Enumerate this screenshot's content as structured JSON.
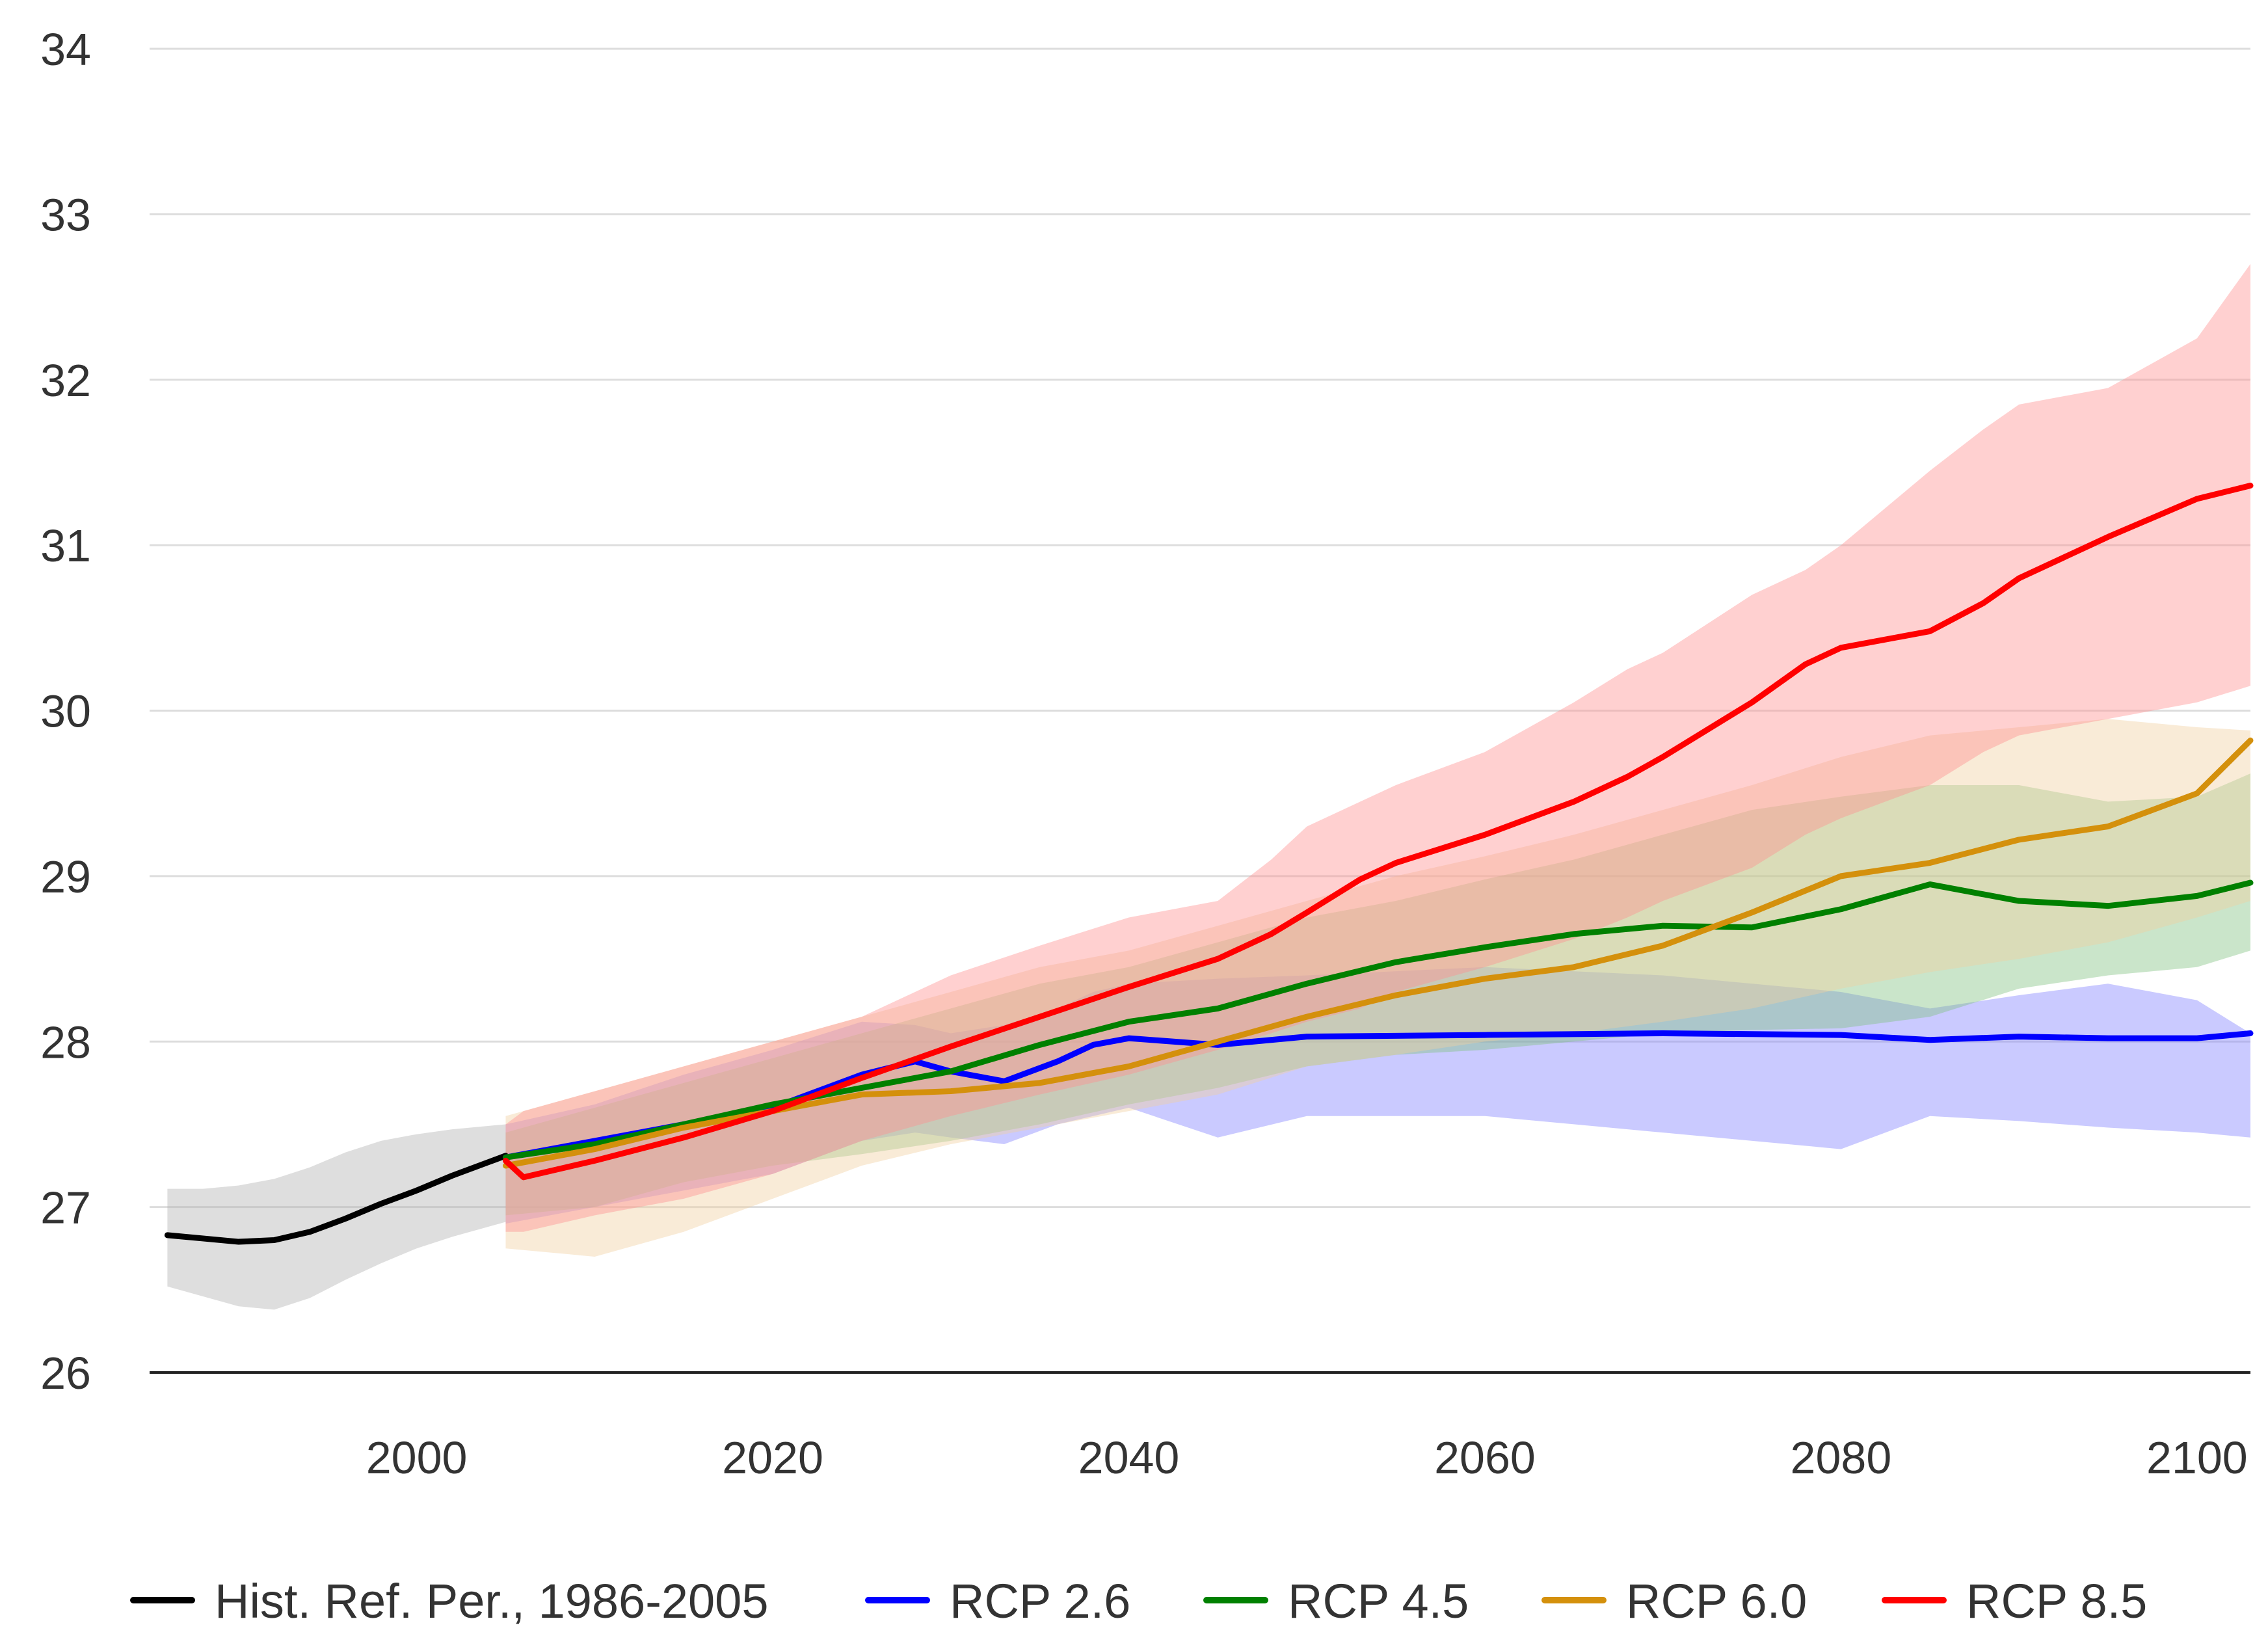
{
  "chart_data": {
    "type": "line",
    "title": "",
    "xlabel": "",
    "ylabel": "",
    "xlim": [
      1985,
      2103
    ],
    "ylim": [
      26,
      34
    ],
    "x_ticks": [
      2000,
      2020,
      2040,
      2060,
      2080,
      2100
    ],
    "y_ticks": [
      26,
      27,
      28,
      29,
      30,
      31,
      32,
      33,
      34
    ],
    "grid": "horizontal",
    "legend_position": "bottom",
    "series": [
      {
        "name": "Hist. Ref. Per., 1986-2005",
        "color": "#000000",
        "band_color": "#b0b0b0",
        "x": [
          1986,
          1988,
          1990,
          1992,
          1994,
          1996,
          1998,
          2000,
          2002,
          2004,
          2005
        ],
        "values": [
          26.83,
          26.81,
          26.79,
          26.8,
          26.85,
          26.93,
          27.02,
          27.1,
          27.19,
          27.27,
          27.31
        ],
        "lower": [
          26.52,
          26.46,
          26.4,
          26.38,
          26.45,
          26.56,
          26.66,
          26.75,
          26.82,
          26.88,
          26.91
        ],
        "upper": [
          27.11,
          27.11,
          27.13,
          27.17,
          27.24,
          27.33,
          27.4,
          27.44,
          27.47,
          27.49,
          27.5
        ]
      },
      {
        "name": "RCP 2.6",
        "color": "#0000ff",
        "band_color": "#8080ff",
        "x": [
          2005,
          2010,
          2015,
          2020,
          2025,
          2028,
          2030,
          2033,
          2036,
          2038,
          2040,
          2045,
          2050,
          2060,
          2070,
          2080,
          2085,
          2090,
          2095,
          2100,
          2103
        ],
        "values": [
          27.3,
          27.4,
          27.5,
          27.6,
          27.8,
          27.88,
          27.82,
          27.76,
          27.88,
          27.98,
          28.02,
          27.98,
          28.03,
          28.04,
          28.05,
          28.04,
          28.01,
          28.03,
          28.02,
          28.02,
          28.05
        ],
        "lower": [
          26.9,
          27.0,
          27.1,
          27.2,
          27.4,
          27.45,
          27.42,
          27.38,
          27.5,
          27.55,
          27.6,
          27.42,
          27.55,
          27.55,
          27.45,
          27.35,
          27.55,
          27.52,
          27.48,
          27.45,
          27.42
        ],
        "upper": [
          27.5,
          27.62,
          27.8,
          27.95,
          28.12,
          28.1,
          28.05,
          28.1,
          28.2,
          28.3,
          28.35,
          28.38,
          28.4,
          28.45,
          28.4,
          28.3,
          28.2,
          28.28,
          28.35,
          28.25,
          28.05
        ]
      },
      {
        "name": "RCP 4.5",
        "color": "#008000",
        "band_color": "#80c080",
        "x": [
          2005,
          2010,
          2015,
          2020,
          2025,
          2030,
          2035,
          2040,
          2045,
          2050,
          2055,
          2060,
          2065,
          2070,
          2075,
          2080,
          2085,
          2090,
          2095,
          2100,
          2103
        ],
        "values": [
          27.3,
          27.38,
          27.5,
          27.62,
          27.72,
          27.82,
          27.98,
          28.12,
          28.2,
          28.35,
          28.48,
          28.57,
          28.65,
          28.7,
          28.69,
          28.8,
          28.95,
          28.85,
          28.82,
          28.88,
          28.96
        ],
        "lower": [
          26.95,
          27.0,
          27.15,
          27.25,
          27.32,
          27.4,
          27.5,
          27.62,
          27.72,
          27.85,
          27.92,
          27.95,
          28.0,
          28.05,
          28.07,
          28.08,
          28.15,
          28.32,
          28.4,
          28.45,
          28.55
        ],
        "upper": [
          27.45,
          27.6,
          27.75,
          27.9,
          28.05,
          28.2,
          28.35,
          28.45,
          28.6,
          28.75,
          28.85,
          28.98,
          29.1,
          29.25,
          29.4,
          29.48,
          29.55,
          29.55,
          29.45,
          29.48,
          29.62
        ]
      },
      {
        "name": "RCP 6.0",
        "color": "#d4900c",
        "band_color": "#f0d0a0",
        "x": [
          2005,
          2010,
          2015,
          2020,
          2025,
          2030,
          2035,
          2040,
          2045,
          2050,
          2055,
          2060,
          2065,
          2070,
          2075,
          2080,
          2085,
          2090,
          2095,
          2100,
          2103
        ],
        "values": [
          27.25,
          27.35,
          27.48,
          27.58,
          27.68,
          27.7,
          27.75,
          27.85,
          28.0,
          28.15,
          28.28,
          28.38,
          28.45,
          28.58,
          28.78,
          29.0,
          29.08,
          29.22,
          29.3,
          29.5,
          29.82
        ],
        "lower": [
          26.75,
          26.7,
          26.85,
          27.05,
          27.25,
          27.38,
          27.48,
          27.58,
          27.68,
          27.85,
          27.92,
          28.0,
          28.05,
          28.12,
          28.2,
          28.32,
          28.42,
          28.5,
          28.6,
          28.75,
          28.85
        ],
        "upper": [
          27.55,
          27.7,
          27.85,
          28.0,
          28.15,
          28.3,
          28.45,
          28.55,
          28.7,
          28.85,
          29.0,
          29.12,
          29.25,
          29.4,
          29.55,
          29.72,
          29.85,
          29.9,
          29.95,
          29.9,
          29.88
        ]
      },
      {
        "name": "RCP 8.5",
        "color": "#ff0000",
        "band_color": "#ff9090",
        "x": [
          2005,
          2006,
          2010,
          2015,
          2020,
          2025,
          2030,
          2035,
          2040,
          2045,
          2048,
          2050,
          2053,
          2055,
          2060,
          2065,
          2068,
          2070,
          2075,
          2078,
          2080,
          2085,
          2088,
          2090,
          2095,
          2100,
          2103
        ],
        "values": [
          27.28,
          27.18,
          27.28,
          27.42,
          27.58,
          27.78,
          27.97,
          28.15,
          28.33,
          28.5,
          28.65,
          28.78,
          28.98,
          29.08,
          29.25,
          29.45,
          29.6,
          29.72,
          30.05,
          30.28,
          30.38,
          30.48,
          30.65,
          30.8,
          31.05,
          31.28,
          31.36
        ],
        "lower": [
          26.85,
          26.85,
          26.95,
          27.05,
          27.2,
          27.4,
          27.55,
          27.68,
          27.8,
          27.95,
          28.05,
          28.12,
          28.2,
          28.3,
          28.45,
          28.62,
          28.75,
          28.85,
          29.05,
          29.25,
          29.35,
          29.55,
          29.75,
          29.85,
          29.95,
          30.05,
          30.15
        ],
        "upper": [
          27.5,
          27.58,
          27.7,
          27.85,
          28.0,
          28.15,
          28.4,
          28.58,
          28.75,
          28.85,
          29.1,
          29.3,
          29.45,
          29.55,
          29.75,
          30.05,
          30.25,
          30.35,
          30.7,
          30.85,
          31.0,
          31.45,
          31.7,
          31.85,
          31.95,
          32.25,
          32.7
        ]
      }
    ]
  }
}
